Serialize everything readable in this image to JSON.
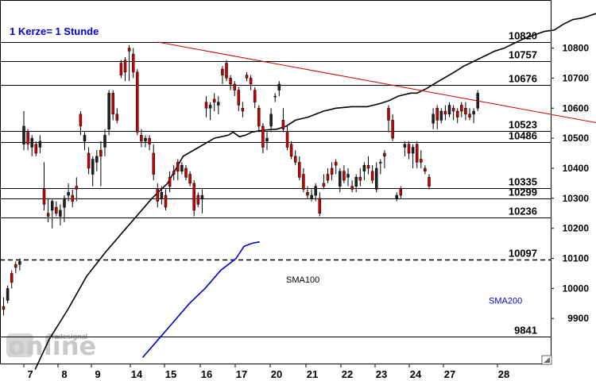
{
  "chart_data": {
    "type": "candlestick",
    "subtitle": "1 Kerze= 1 Stunde",
    "ylim": [
      9750,
      10960
    ],
    "yticks": [
      9900,
      10000,
      10100,
      10200,
      10300,
      10400,
      10500,
      10600,
      10700,
      10800
    ],
    "x_labels": [
      "7",
      "8",
      "9",
      "14",
      "15",
      "16",
      "17",
      "20",
      "21",
      "22",
      "23",
      "24",
      "27",
      "28"
    ],
    "grid": false,
    "levels": [
      {
        "label": "10820",
        "value": 10820,
        "style": "solid"
      },
      {
        "label": "10757",
        "value": 10757,
        "style": "solid"
      },
      {
        "label": "10676",
        "value": 10676,
        "style": "solid"
      },
      {
        "label": "10523",
        "value": 10523,
        "style": "solid"
      },
      {
        "label": "10486",
        "value": 10486,
        "style": "solid"
      },
      {
        "label": "10335",
        "value": 10335,
        "style": "solid"
      },
      {
        "label": "10299",
        "value": 10299,
        "style": "solid"
      },
      {
        "label": "10236",
        "value": 10236,
        "style": "solid"
      },
      {
        "label": "10097",
        "value": 10097,
        "style": "dashed"
      },
      {
        "label": "9841",
        "value": 9841,
        "style": "solid"
      }
    ],
    "trendline": {
      "color": "#cc0000",
      "from": {
        "i": 46,
        "y": 10820
      },
      "to": {
        "i": 165,
        "y": 10530
      }
    },
    "series": [
      {
        "name": "SMA100",
        "color": "#000000",
        "label_at": {
          "i": 70,
          "y": 10020
        },
        "points": [
          [
            21,
            9730
          ],
          [
            30,
            9830
          ],
          [
            42,
            9930
          ],
          [
            54,
            10040
          ],
          [
            66,
            10120
          ],
          [
            76,
            10180
          ],
          [
            86,
            10240
          ],
          [
            96,
            10300
          ],
          [
            106,
            10350
          ],
          [
            116,
            10440
          ],
          [
            126,
            10470
          ],
          [
            136,
            10500
          ],
          [
            145,
            10510
          ],
          [
            148,
            10520
          ],
          [
            152,
            10505
          ],
          [
            156,
            10510
          ],
          [
            160,
            10520
          ],
          [
            165,
            10525
          ],
          [
            170,
            10528
          ],
          [
            176,
            10530
          ],
          [
            182,
            10540
          ],
          [
            188,
            10560
          ],
          [
            196,
            10570
          ],
          [
            206,
            10590
          ],
          [
            214,
            10600
          ],
          [
            224,
            10605
          ],
          [
            234,
            10605
          ],
          [
            238,
            10610
          ],
          [
            242,
            10615
          ],
          [
            248,
            10625
          ],
          [
            254,
            10640
          ],
          [
            262,
            10650
          ],
          [
            266,
            10650
          ],
          [
            272,
            10665
          ],
          [
            280,
            10690
          ],
          [
            290,
            10720
          ],
          [
            296,
            10740
          ],
          [
            300,
            10750
          ],
          [
            304,
            10760
          ],
          [
            310,
            10775
          ],
          [
            316,
            10790
          ],
          [
            322,
            10800
          ],
          [
            328,
            10815
          ],
          [
            334,
            10830
          ],
          [
            342,
            10845
          ],
          [
            348,
            10856
          ],
          [
            354,
            10860
          ],
          [
            360,
            10880
          ],
          [
            366,
            10895
          ],
          [
            372,
            10900
          ],
          [
            378,
            10910
          ],
          [
            384,
            10920
          ],
          [
            386,
            10920
          ],
          [
            390,
            10925
          ],
          [
            398,
            10930
          ],
          [
            402,
            10940
          ],
          [
            406,
            10945
          ],
          [
            410,
            10950
          ],
          [
            414,
            10970
          ],
          [
            418,
            10980
          ],
          [
            422,
            10990
          ]
        ]
      },
      {
        "name": "SMA200",
        "color": "#0000cc",
        "label_at": {
          "i": 120,
          "y": 9950
        },
        "points": [
          [
            90,
            9770
          ],
          [
            100,
            9830
          ],
          [
            110,
            9890
          ],
          [
            120,
            9950
          ],
          [
            130,
            10000
          ],
          [
            140,
            10060
          ],
          [
            150,
            10100
          ],
          [
            155,
            10140
          ],
          [
            160,
            10150
          ],
          [
            165,
            10155
          ]
        ]
      }
    ],
    "candles": [
      [
        9940,
        9970,
        9910,
        9930
      ],
      [
        9960,
        10010,
        9950,
        10000
      ],
      [
        10050,
        10060,
        10000,
        10020
      ],
      [
        10080,
        10090,
        10050,
        10070
      ],
      [
        10080,
        10100,
        10060,
        10090
      ],
      [
        10480,
        10590,
        10460,
        10540
      ],
      [
        10520,
        10530,
        10460,
        10480
      ],
      [
        10470,
        10510,
        10440,
        10500
      ],
      [
        10480,
        10490,
        10440,
        10450
      ],
      [
        10470,
        10510,
        10450,
        10490
      ],
      [
        10330,
        10420,
        10260,
        10280
      ],
      [
        10250,
        10300,
        10220,
        10240
      ],
      [
        10260,
        10300,
        10200,
        10290
      ],
      [
        10270,
        10290,
        10240,
        10250
      ],
      [
        10240,
        10280,
        10210,
        10260
      ],
      [
        10270,
        10310,
        10220,
        10300
      ],
      [
        10310,
        10350,
        10290,
        10320
      ],
      [
        10310,
        10330,
        10270,
        10290
      ],
      [
        10340,
        10370,
        10290,
        10330
      ],
      [
        10580,
        10590,
        10510,
        10540
      ],
      [
        10490,
        10520,
        10460,
        10510
      ],
      [
        10450,
        10470,
        10380,
        10400
      ],
      [
        10380,
        10440,
        10340,
        10430
      ],
      [
        10420,
        10460,
        10390,
        10440
      ],
      [
        10460,
        10490,
        10340,
        10440
      ],
      [
        10470,
        10530,
        10440,
        10510
      ],
      [
        10530,
        10660,
        10510,
        10650
      ],
      [
        10650,
        10660,
        10560,
        10580
      ],
      [
        10580,
        10600,
        10550,
        10560
      ],
      [
        10750,
        10760,
        10700,
        10710
      ],
      [
        10760,
        10770,
        10690,
        10720
      ],
      [
        10800,
        10810,
        10690,
        10790
      ],
      [
        10780,
        10800,
        10700,
        10720
      ],
      [
        10720,
        10730,
        10510,
        10520
      ],
      [
        10510,
        10530,
        10470,
        10490
      ],
      [
        10490,
        10510,
        10470,
        10500
      ],
      [
        10500,
        10510,
        10460,
        10480
      ],
      [
        10450,
        10480,
        10360,
        10380
      ],
      [
        10330,
        10350,
        10270,
        10290
      ],
      [
        10300,
        10340,
        10280,
        10320
      ],
      [
        10310,
        10330,
        10260,
        10270
      ],
      [
        10370,
        10390,
        10320,
        10340
      ],
      [
        10390,
        10410,
        10360,
        10380
      ],
      [
        10420,
        10430,
        10360,
        10390
      ],
      [
        10390,
        10420,
        10380,
        10410
      ],
      [
        10400,
        10410,
        10360,
        10370
      ],
      [
        10380,
        10390,
        10340,
        10350
      ],
      [
        10350,
        10360,
        10240,
        10260
      ],
      [
        10310,
        10320,
        10270,
        10280
      ],
      [
        10300,
        10330,
        10250,
        10310
      ],
      [
        10620,
        10640,
        10570,
        10600
      ],
      [
        10600,
        10620,
        10560,
        10610
      ],
      [
        10630,
        10650,
        10590,
        10620
      ],
      [
        10610,
        10640,
        10580,
        10620
      ],
      [
        10730,
        10740,
        10680,
        10710
      ],
      [
        10750,
        10760,
        10690,
        10700
      ],
      [
        10700,
        10710,
        10660,
        10680
      ],
      [
        10680,
        10690,
        10640,
        10660
      ],
      [
        10660,
        10670,
        10590,
        10610
      ],
      [
        10600,
        10620,
        10570,
        10590
      ],
      [
        10710,
        10720,
        10690,
        10700
      ],
      [
        10700,
        10710,
        10660,
        10680
      ],
      [
        10660,
        10670,
        10600,
        10620
      ],
      [
        10600,
        10610,
        10520,
        10540
      ],
      [
        10540,
        10550,
        10450,
        10470
      ],
      [
        10490,
        10520,
        10460,
        10500
      ],
      [
        10540,
        10600,
        10520,
        10580
      ],
      [
        10640,
        10650,
        10620,
        10640
      ],
      [
        10660,
        10690,
        10640,
        10680
      ],
      [
        10560,
        10600,
        10520,
        10530
      ],
      [
        10520,
        10540,
        10460,
        10470
      ],
      [
        10480,
        10490,
        10430,
        10440
      ],
      [
        10440,
        10460,
        10410,
        10420
      ],
      [
        10420,
        10440,
        10360,
        10370
      ],
      [
        10380,
        10400,
        10320,
        10330
      ],
      [
        10320,
        10340,
        10300,
        10310
      ],
      [
        10300,
        10330,
        10290,
        10310
      ],
      [
        10310,
        10350,
        10290,
        10340
      ],
      [
        10300,
        10320,
        10240,
        10250
      ],
      [
        10350,
        10380,
        10330,
        10340
      ],
      [
        10380,
        10400,
        10350,
        10360
      ],
      [
        10400,
        10420,
        10360,
        10380
      ],
      [
        10420,
        10430,
        10380,
        10410
      ],
      [
        10340,
        10400,
        10320,
        10390
      ],
      [
        10390,
        10410,
        10350,
        10360
      ],
      [
        10370,
        10400,
        10340,
        10380
      ],
      [
        10340,
        10360,
        10320,
        10330
      ],
      [
        10340,
        10380,
        10320,
        10370
      ],
      [
        10370,
        10400,
        10340,
        10360
      ],
      [
        10390,
        10420,
        10360,
        10410
      ],
      [
        10410,
        10440,
        10380,
        10400
      ],
      [
        10390,
        10410,
        10350,
        10360
      ],
      [
        10330,
        10420,
        10320,
        10400
      ],
      [
        10420,
        10430,
        10380,
        10420
      ],
      [
        10450,
        10460,
        10400,
        10440
      ],
      [
        10600,
        10610,
        10520,
        10560
      ],
      [
        10560,
        10580,
        10490,
        10500
      ],
      [
        10300,
        10320,
        10290,
        10310
      ],
      [
        10330,
        10340,
        10300,
        10310
      ],
      [
        10470,
        10490,
        10440,
        10480
      ],
      [
        10480,
        10490,
        10430,
        10450
      ],
      [
        10450,
        10480,
        10400,
        10470
      ],
      [
        10480,
        10490,
        10400,
        10420
      ],
      [
        10430,
        10460,
        10400,
        10420
      ],
      [
        10400,
        10410,
        10380,
        10390
      ],
      [
        10370,
        10380,
        10330,
        10340
      ],
      [
        10550,
        10600,
        10530,
        10580
      ],
      [
        10600,
        10610,
        10530,
        10560
      ],
      [
        10560,
        10600,
        10550,
        10590
      ],
      [
        10590,
        10610,
        10560,
        10580
      ],
      [
        10580,
        10620,
        10570,
        10610
      ],
      [
        10600,
        10610,
        10560,
        10590
      ],
      [
        10590,
        10600,
        10550,
        10570
      ],
      [
        10610,
        10620,
        10570,
        10590
      ],
      [
        10600,
        10620,
        10560,
        10580
      ],
      [
        10580,
        10600,
        10560,
        10570
      ],
      [
        10580,
        10600,
        10550,
        10590
      ],
      [
        10600,
        10660,
        10590,
        10650
      ]
    ]
  },
  "watermark": {
    "brand": "Tradesignal",
    "logo_text": "online"
  }
}
